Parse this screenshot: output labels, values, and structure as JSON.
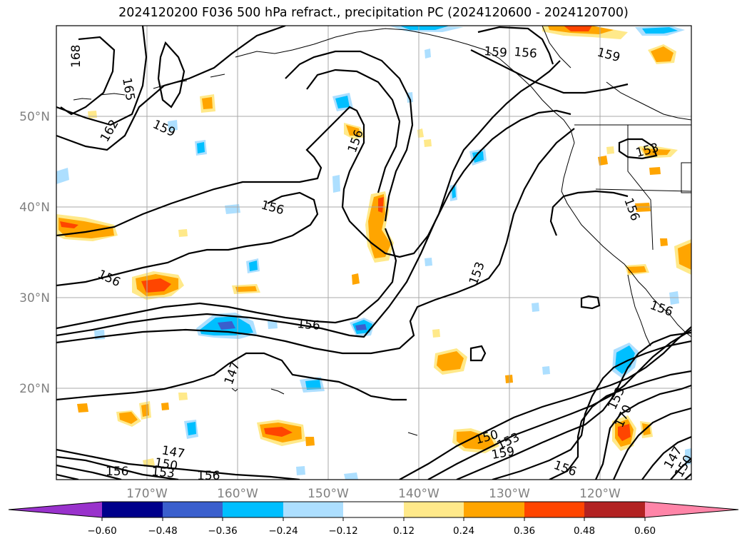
{
  "title": "2024120200 F036 500 hPa refract., precipitation PC (2024120600 - 2024120700)",
  "map": {
    "lat_labels": [
      "50°N",
      "40°N",
      "30°N",
      "20°N"
    ],
    "lon_labels": [
      "170°W",
      "160°W",
      "150°W",
      "140°W",
      "130°W",
      "120°W"
    ],
    "contour_labels": [
      "168",
      "165",
      "162",
      "159",
      "156",
      "156",
      "156",
      "156",
      "153",
      "147",
      "156",
      "159",
      "159",
      "156",
      "153",
      "156",
      "147",
      "150",
      "153",
      "156",
      "150",
      "153",
      "159",
      "156",
      "153",
      "170",
      "147",
      "150"
    ]
  },
  "colorbar": {
    "ticks": [
      "−0.60",
      "−0.48",
      "−0.36",
      "−0.24",
      "−0.12",
      "0.12",
      "0.24",
      "0.36",
      "0.48",
      "0.60"
    ],
    "colors": [
      "#9932CC",
      "#00008B",
      "#3A5FCD",
      "#00BFFF",
      "#ADDFFF",
      "#FFFFFF",
      "#FFE98A",
      "#FFA500",
      "#FF4500",
      "#B22222",
      "#FF85A8"
    ]
  }
}
